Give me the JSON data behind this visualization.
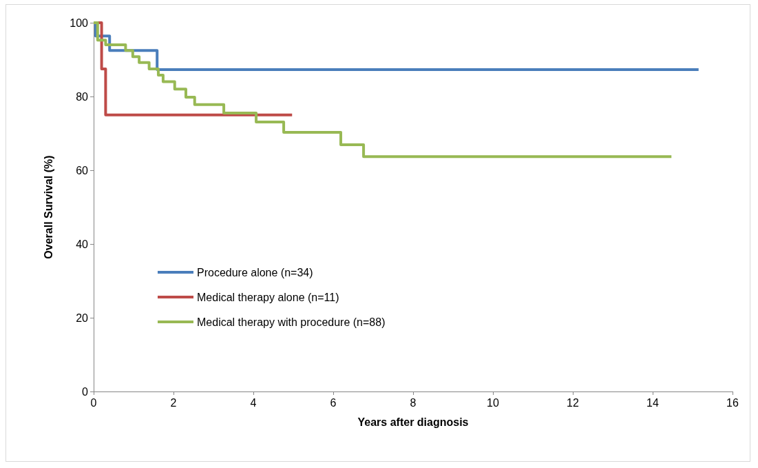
{
  "chart_data": {
    "type": "step",
    "xlabel": "Years after diagnosis",
    "ylabel": "Overall Survival (%)",
    "xlim": [
      0,
      16
    ],
    "xticks": [
      0,
      2,
      4,
      6,
      8,
      10,
      12,
      14,
      16
    ],
    "ylim": [
      0,
      100
    ],
    "yticks": [
      0,
      20,
      40,
      60,
      80,
      100
    ],
    "grid": false,
    "legend": "left",
    "marker": "none",
    "line_style": "solid",
    "series": [
      {
        "name": "Procedure alone (n=34)",
        "color": "#4a7ebb",
        "x": [
          0,
          0.05,
          0.4,
          1.59,
          15.15
        ],
        "values": [
          100,
          96.4,
          92.5,
          87.3,
          87.3
        ]
      },
      {
        "name": "Medical therapy alone (n=11)",
        "color": "#be4b48",
        "x": [
          0,
          0.2,
          0.3,
          4.97
        ],
        "values": [
          100,
          87.5,
          75,
          75
        ]
      },
      {
        "name": "Medical therapy with procedure (n=88)",
        "color": "#98b954",
        "x": [
          0,
          0.1,
          0.3,
          0.8,
          0.98,
          1.14,
          1.39,
          1.62,
          1.74,
          2.03,
          2.31,
          2.53,
          3.26,
          4.07,
          4.76,
          6.19,
          6.76,
          14.47
        ],
        "values": [
          100,
          95.3,
          94,
          92.5,
          90.8,
          89.2,
          87.5,
          85.8,
          84,
          82,
          79.8,
          77.8,
          75.5,
          73.1,
          70.3,
          66.9,
          63.7,
          63.7
        ]
      }
    ]
  }
}
